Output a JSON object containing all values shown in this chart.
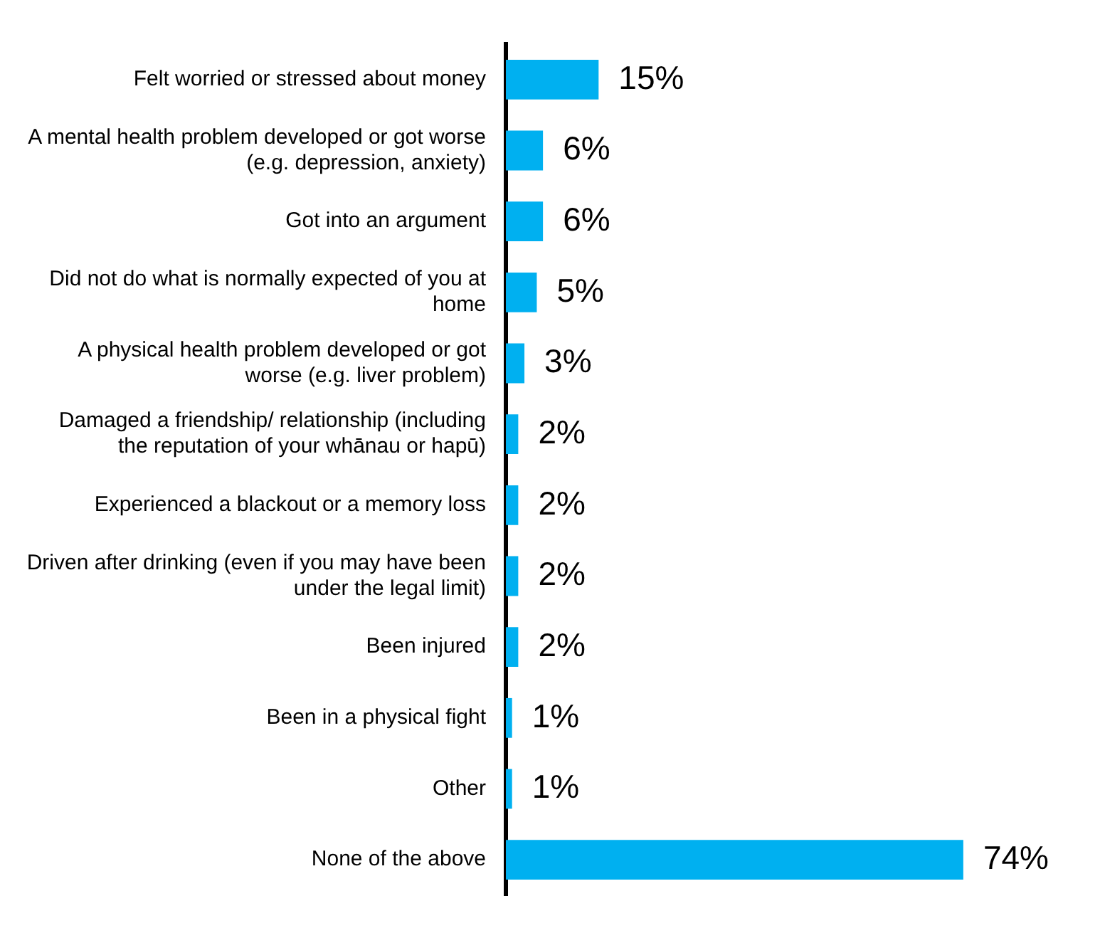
{
  "chart_data": {
    "type": "bar",
    "orientation": "horizontal",
    "categories": [
      "Felt worried or stressed about money",
      "A mental health problem developed or got worse (e.g. depression, anxiety)",
      "Got into an argument",
      "Did not do what is normally expected of you at home",
      "A physical health problem developed or got worse (e.g. liver problem)",
      "Damaged a friendship/ relationship (including the reputation of your whānau or hapū)",
      "Experienced a blackout or a memory loss",
      "Driven after drinking (even if you may have been under the legal limit)",
      "Been injured",
      "Been in a physical fight",
      "Other",
      "None of the above"
    ],
    "values": [
      15,
      6,
      6,
      5,
      3,
      2,
      2,
      2,
      2,
      1,
      1,
      74
    ],
    "value_labels": [
      "15%",
      "6%",
      "6%",
      "5%",
      "3%",
      "2%",
      "2%",
      "2%",
      "2%",
      "1%",
      "1%",
      "74%"
    ],
    "color": "#00b0f0",
    "grid": false,
    "legend": false,
    "tick_labels": "y"
  }
}
